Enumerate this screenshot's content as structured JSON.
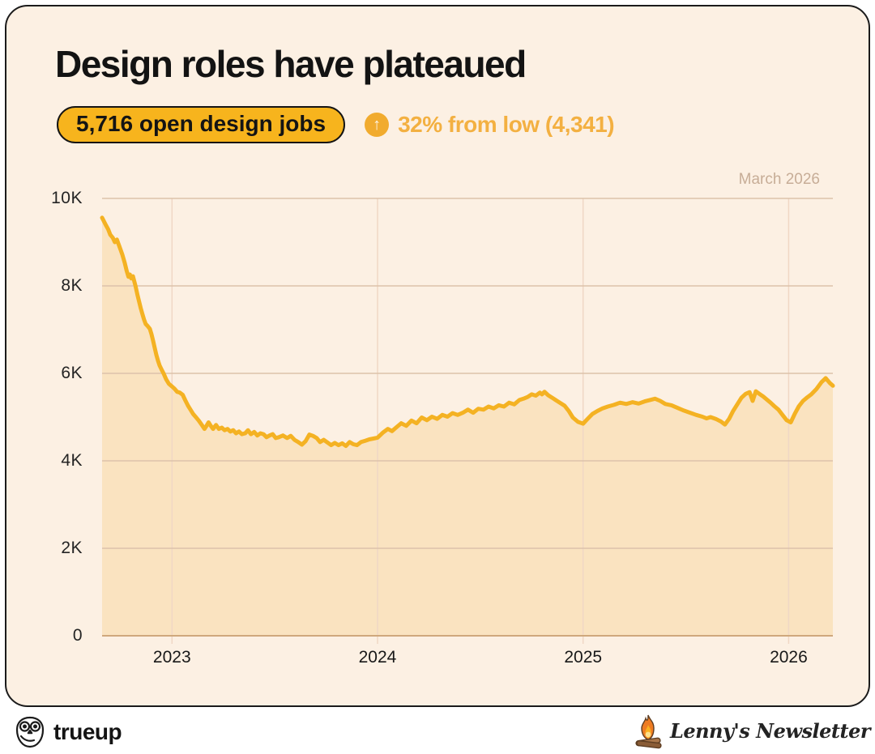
{
  "header": {
    "title": "Design roles have plateaued",
    "badge": "5,716 open design jobs",
    "up_arrow": "↑",
    "delta": "32% from low (4,341)"
  },
  "chart": {
    "as_of": "March 2026"
  },
  "chart_data": {
    "type": "area",
    "title": "Design roles have plateaued",
    "series_name": "Open design jobs",
    "latest_value": 5716,
    "low_value": 4341,
    "pct_from_low": 32,
    "as_of_label": "March 2026",
    "x_range": [
      2022.66,
      2026.215
    ],
    "y_range": [
      0,
      10000
    ],
    "grid": true,
    "x_ticks": [
      {
        "value": 2023,
        "label": "2023"
      },
      {
        "value": 2024,
        "label": "2024"
      },
      {
        "value": 2025,
        "label": "2025"
      },
      {
        "value": 2026,
        "label": "2026"
      }
    ],
    "y_ticks": [
      {
        "value": 0,
        "label": "0"
      },
      {
        "value": 2000,
        "label": "2K"
      },
      {
        "value": 4000,
        "label": "4K"
      },
      {
        "value": 6000,
        "label": "6K"
      },
      {
        "value": 8000,
        "label": "8K"
      },
      {
        "value": 10000,
        "label": "10K"
      }
    ],
    "colors": {
      "line": "#f4b223",
      "area": "#fae3c0",
      "grid_h": "#dcc2aa",
      "grid_v": "#f0d7c5",
      "baseline": "#cfa87c"
    },
    "points": [
      [
        2022.66,
        9560
      ],
      [
        2022.675,
        9420
      ],
      [
        2022.69,
        9290
      ],
      [
        2022.7,
        9170
      ],
      [
        2022.712,
        9100
      ],
      [
        2022.722,
        9000
      ],
      [
        2022.732,
        9060
      ],
      [
        2022.745,
        8890
      ],
      [
        2022.758,
        8720
      ],
      [
        2022.77,
        8530
      ],
      [
        2022.78,
        8340
      ],
      [
        2022.788,
        8210
      ],
      [
        2022.795,
        8260
      ],
      [
        2022.802,
        8170
      ],
      [
        2022.81,
        8220
      ],
      [
        2022.822,
        8010
      ],
      [
        2022.832,
        7800
      ],
      [
        2022.84,
        7640
      ],
      [
        2022.848,
        7490
      ],
      [
        2022.856,
        7360
      ],
      [
        2022.864,
        7230
      ],
      [
        2022.872,
        7130
      ],
      [
        2022.882,
        7080
      ],
      [
        2022.892,
        7020
      ],
      [
        2022.9,
        6900
      ],
      [
        2022.908,
        6750
      ],
      [
        2022.916,
        6580
      ],
      [
        2022.924,
        6420
      ],
      [
        2022.932,
        6290
      ],
      [
        2022.94,
        6180
      ],
      [
        2022.95,
        6080
      ],
      [
        2022.96,
        5990
      ],
      [
        2022.972,
        5860
      ],
      [
        2022.985,
        5760
      ],
      [
        2023.0,
        5700
      ],
      [
        2023.012,
        5650
      ],
      [
        2023.025,
        5580
      ],
      [
        2023.038,
        5560
      ],
      [
        2023.052,
        5510
      ],
      [
        2023.065,
        5380
      ],
      [
        2023.078,
        5260
      ],
      [
        2023.09,
        5170
      ],
      [
        2023.103,
        5070
      ],
      [
        2023.116,
        5000
      ],
      [
        2023.13,
        4920
      ],
      [
        2023.145,
        4820
      ],
      [
        2023.158,
        4730
      ],
      [
        2023.168,
        4800
      ],
      [
        2023.178,
        4880
      ],
      [
        2023.19,
        4790
      ],
      [
        2023.2,
        4730
      ],
      [
        2023.214,
        4820
      ],
      [
        2023.228,
        4730
      ],
      [
        2023.242,
        4760
      ],
      [
        2023.256,
        4700
      ],
      [
        2023.27,
        4730
      ],
      [
        2023.284,
        4670
      ],
      [
        2023.298,
        4700
      ],
      [
        2023.312,
        4630
      ],
      [
        2023.326,
        4670
      ],
      [
        2023.34,
        4610
      ],
      [
        2023.356,
        4630
      ],
      [
        2023.37,
        4700
      ],
      [
        2023.384,
        4610
      ],
      [
        2023.4,
        4660
      ],
      [
        2023.415,
        4580
      ],
      [
        2023.43,
        4630
      ],
      [
        2023.445,
        4610
      ],
      [
        2023.46,
        4540
      ],
      [
        2023.475,
        4580
      ],
      [
        2023.49,
        4610
      ],
      [
        2023.505,
        4520
      ],
      [
        2023.52,
        4540
      ],
      [
        2023.54,
        4580
      ],
      [
        2023.56,
        4520
      ],
      [
        2023.578,
        4570
      ],
      [
        2023.596,
        4480
      ],
      [
        2023.614,
        4430
      ],
      [
        2023.632,
        4370
      ],
      [
        2023.65,
        4450
      ],
      [
        2023.668,
        4600
      ],
      [
        2023.686,
        4570
      ],
      [
        2023.704,
        4520
      ],
      [
        2023.72,
        4430
      ],
      [
        2023.738,
        4480
      ],
      [
        2023.756,
        4420
      ],
      [
        2023.774,
        4360
      ],
      [
        2023.792,
        4410
      ],
      [
        2023.81,
        4360
      ],
      [
        2023.828,
        4400
      ],
      [
        2023.846,
        4341
      ],
      [
        2023.864,
        4430
      ],
      [
        2023.882,
        4380
      ],
      [
        2023.9,
        4360
      ],
      [
        2023.92,
        4430
      ],
      [
        2023.94,
        4460
      ],
      [
        2023.96,
        4490
      ],
      [
        2023.98,
        4510
      ],
      [
        2024.0,
        4530
      ],
      [
        2024.025,
        4640
      ],
      [
        2024.05,
        4730
      ],
      [
        2024.07,
        4680
      ],
      [
        2024.09,
        4760
      ],
      [
        2024.115,
        4860
      ],
      [
        2024.14,
        4800
      ],
      [
        2024.165,
        4920
      ],
      [
        2024.19,
        4860
      ],
      [
        2024.215,
        4990
      ],
      [
        2024.24,
        4930
      ],
      [
        2024.265,
        5010
      ],
      [
        2024.29,
        4960
      ],
      [
        2024.315,
        5050
      ],
      [
        2024.34,
        5010
      ],
      [
        2024.365,
        5090
      ],
      [
        2024.39,
        5050
      ],
      [
        2024.415,
        5100
      ],
      [
        2024.44,
        5170
      ],
      [
        2024.465,
        5100
      ],
      [
        2024.49,
        5190
      ],
      [
        2024.515,
        5170
      ],
      [
        2024.54,
        5240
      ],
      [
        2024.565,
        5200
      ],
      [
        2024.59,
        5270
      ],
      [
        2024.615,
        5240
      ],
      [
        2024.64,
        5330
      ],
      [
        2024.665,
        5290
      ],
      [
        2024.69,
        5390
      ],
      [
        2024.71,
        5420
      ],
      [
        2024.73,
        5460
      ],
      [
        2024.75,
        5520
      ],
      [
        2024.77,
        5490
      ],
      [
        2024.79,
        5560
      ],
      [
        2024.8,
        5520
      ],
      [
        2024.812,
        5580
      ],
      [
        2024.83,
        5500
      ],
      [
        2024.85,
        5440
      ],
      [
        2024.87,
        5380
      ],
      [
        2024.89,
        5320
      ],
      [
        2024.91,
        5260
      ],
      [
        2024.93,
        5140
      ],
      [
        2024.95,
        4990
      ],
      [
        2024.975,
        4890
      ],
      [
        2025.0,
        4850
      ],
      [
        2025.02,
        4950
      ],
      [
        2025.045,
        5070
      ],
      [
        2025.07,
        5140
      ],
      [
        2025.095,
        5200
      ],
      [
        2025.12,
        5240
      ],
      [
        2025.15,
        5280
      ],
      [
        2025.18,
        5330
      ],
      [
        2025.21,
        5300
      ],
      [
        2025.24,
        5340
      ],
      [
        2025.27,
        5310
      ],
      [
        2025.3,
        5360
      ],
      [
        2025.325,
        5390
      ],
      [
        2025.35,
        5420
      ],
      [
        2025.375,
        5370
      ],
      [
        2025.4,
        5300
      ],
      [
        2025.43,
        5270
      ],
      [
        2025.46,
        5210
      ],
      [
        2025.49,
        5150
      ],
      [
        2025.52,
        5100
      ],
      [
        2025.55,
        5050
      ],
      [
        2025.58,
        5010
      ],
      [
        2025.6,
        4970
      ],
      [
        2025.62,
        5000
      ],
      [
        2025.645,
        4960
      ],
      [
        2025.67,
        4900
      ],
      [
        2025.69,
        4830
      ],
      [
        2025.71,
        4960
      ],
      [
        2025.73,
        5140
      ],
      [
        2025.75,
        5290
      ],
      [
        2025.77,
        5440
      ],
      [
        2025.79,
        5530
      ],
      [
        2025.81,
        5570
      ],
      [
        2025.825,
        5370
      ],
      [
        2025.84,
        5590
      ],
      [
        2025.858,
        5530
      ],
      [
        2025.876,
        5470
      ],
      [
        2025.894,
        5400
      ],
      [
        2025.912,
        5330
      ],
      [
        2025.93,
        5250
      ],
      [
        2025.95,
        5170
      ],
      [
        2025.97,
        5050
      ],
      [
        2025.99,
        4930
      ],
      [
        2026.01,
        4880
      ],
      [
        2026.03,
        5080
      ],
      [
        2026.05,
        5250
      ],
      [
        2026.07,
        5370
      ],
      [
        2026.09,
        5450
      ],
      [
        2026.11,
        5520
      ],
      [
        2026.135,
        5640
      ],
      [
        2026.16,
        5800
      ],
      [
        2026.18,
        5890
      ],
      [
        2026.2,
        5780
      ],
      [
        2026.215,
        5716
      ]
    ]
  },
  "footer": {
    "left_brand": "trueup",
    "right_brand": "Lenny's Newsletter"
  }
}
